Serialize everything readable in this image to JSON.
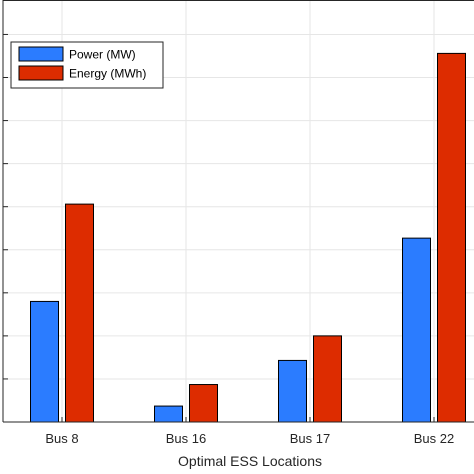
{
  "chart_data": {
    "type": "bar",
    "title": "",
    "xlabel": "Optimal ESS Locations",
    "ylabel": "",
    "categories": [
      "Bus 8",
      "Bus 16",
      "Bus 17",
      "Bus 22"
    ],
    "series": [
      {
        "name": "Power (MW)",
        "color": "#2b7cff",
        "values": [
          2.8,
          0.37,
          1.43,
          4.27
        ]
      },
      {
        "name": "Energy (MWh)",
        "color": "#dd2c00",
        "values": [
          5.06,
          0.87,
          2.0,
          8.56
        ]
      }
    ],
    "ylim": [
      0,
      9.8
    ],
    "y_tick_step": 1,
    "grid": true,
    "legend_position": "top-left"
  }
}
